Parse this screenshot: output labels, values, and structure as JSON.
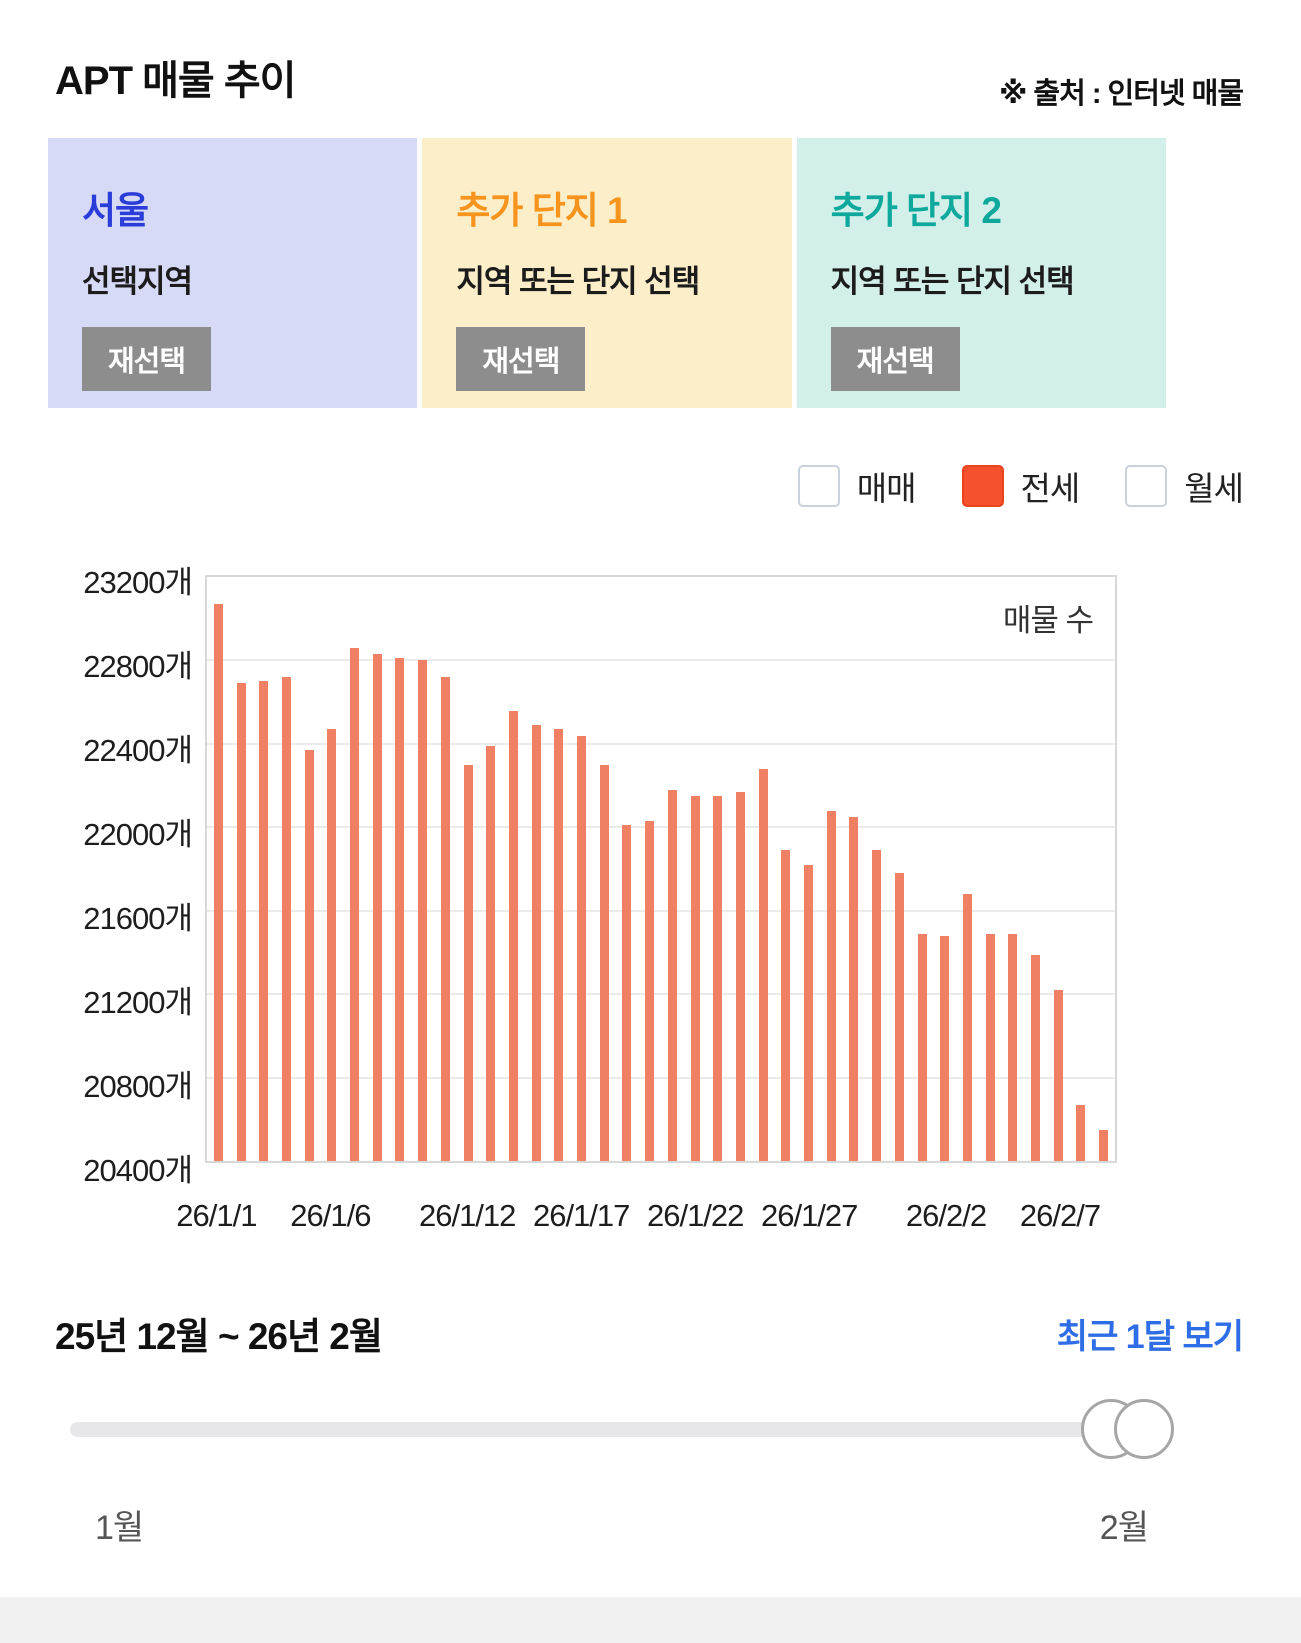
{
  "header": {
    "title": "APT 매물 추이",
    "source": "※ 출처 : 인터넷 매물"
  },
  "panels": [
    {
      "name": "서울",
      "subtitle": "선택지역",
      "button": "재선택",
      "bg_color": "#d7daf7",
      "title_color": "#2b3dd8"
    },
    {
      "name": "추가 단지 1",
      "subtitle": "지역 또는 단지 선택",
      "button": "재선택",
      "bg_color": "#fdeeca",
      "title_color": "#f7941d"
    },
    {
      "name": "추가 단지 2",
      "subtitle": "지역 또는 단지 선택",
      "button": "재선택",
      "bg_color": "#d2efe9",
      "title_color": "#0ea89d"
    }
  ],
  "legend": [
    {
      "label": "매매",
      "checked": false
    },
    {
      "label": "전세",
      "checked": true,
      "color": "#f4512c"
    },
    {
      "label": "월세",
      "checked": false
    }
  ],
  "chart_data": {
    "type": "bar",
    "title": "매물 수",
    "bar_color": "#ef8064",
    "ylim": [
      20400,
      23200
    ],
    "ytick_step": 400,
    "ytick_labels": [
      "23200개",
      "22800개",
      "22400개",
      "22000개",
      "21600개",
      "21200개",
      "20800개",
      "20400개"
    ],
    "x": [
      "26/1/1",
      "26/1/2",
      "26/1/3",
      "26/1/4",
      "26/1/5",
      "26/1/6",
      "26/1/7",
      "26/1/8",
      "26/1/9",
      "26/1/10",
      "26/1/11",
      "26/1/12",
      "26/1/13",
      "26/1/14",
      "26/1/15",
      "26/1/16",
      "26/1/17",
      "26/1/18",
      "26/1/19",
      "26/1/20",
      "26/1/21",
      "26/1/22",
      "26/1/23",
      "26/1/24",
      "26/1/25",
      "26/1/26",
      "26/1/27",
      "26/1/28",
      "26/1/29",
      "26/1/30",
      "26/1/31",
      "26/2/1",
      "26/2/2",
      "26/2/3",
      "26/2/4",
      "26/2/5",
      "26/2/6",
      "26/2/7",
      "26/2/8",
      "26/2/9"
    ],
    "values": [
      23070,
      22690,
      22700,
      22720,
      22370,
      22470,
      22860,
      22830,
      22810,
      22800,
      22720,
      22300,
      22390,
      22560,
      22490,
      22470,
      22440,
      22300,
      22010,
      22030,
      22180,
      22150,
      22150,
      22170,
      22280,
      21890,
      21820,
      22080,
      22050,
      21890,
      21780,
      21490,
      21480,
      21680,
      21490,
      21490,
      21390,
      21220,
      20670,
      20550
    ],
    "xticks": [
      {
        "index": 0,
        "label": "26/1/1"
      },
      {
        "index": 5,
        "label": "26/1/6"
      },
      {
        "index": 11,
        "label": "26/1/12"
      },
      {
        "index": 16,
        "label": "26/1/17"
      },
      {
        "index": 21,
        "label": "26/1/22"
      },
      {
        "index": 26,
        "label": "26/1/27"
      },
      {
        "index": 32,
        "label": "26/2/2"
      },
      {
        "index": 37,
        "label": "26/2/7"
      }
    ],
    "grid": true,
    "legend_position": "top-right"
  },
  "footer": {
    "range_label": "25년 12월 ~ 26년 2월",
    "recent_link": "최근 1달 보기",
    "slider": {
      "start_label": "1월",
      "end_label": "2월"
    }
  },
  "colors": {
    "link_blue": "#2e6de5",
    "button_gray": "#8d8d8d",
    "checked_orange": "#f4512c",
    "bar_salmon": "#ef8064"
  }
}
